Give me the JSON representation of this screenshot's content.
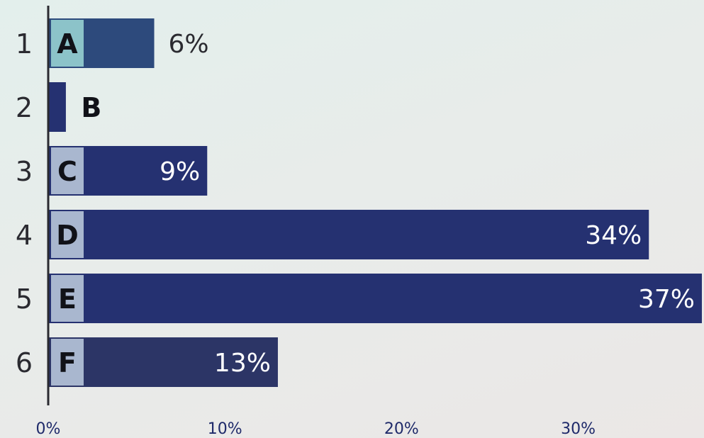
{
  "chart_data": {
    "type": "bar",
    "orientation": "horizontal",
    "title": "",
    "xlabel": "",
    "ylabel": "",
    "categories": [
      "A",
      "B",
      "C",
      "D",
      "E",
      "F"
    ],
    "ranks": [
      "1",
      "2",
      "3",
      "4",
      "5",
      "6"
    ],
    "values": [
      6,
      1,
      9,
      34,
      37,
      13
    ],
    "data_labels": [
      "6%",
      "",
      "9%",
      "34%",
      "37%",
      "13%"
    ],
    "xlim": [
      0,
      37
    ],
    "x_ticks": [
      0,
      10,
      20,
      30
    ],
    "x_tick_labels": [
      "0%",
      "10%",
      "20%",
      "30%"
    ],
    "grid": false,
    "legend": "none",
    "colors": {
      "bar": "#253171",
      "bar_first": "#2d4a7c",
      "bar_last": "#2c3566",
      "letter_box": "#a9b7cf",
      "letter_box_first": "#8cc3c9",
      "axis": "#2a2a30",
      "label_inside": "#ffffff",
      "label_outside": "#2a2a30"
    }
  }
}
